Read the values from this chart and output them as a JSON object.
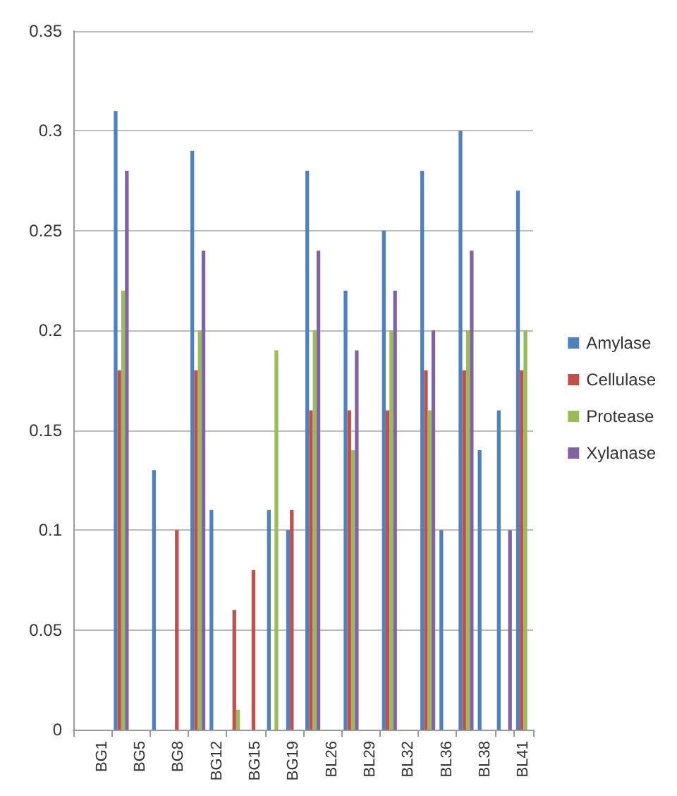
{
  "chart_data": {
    "type": "bar",
    "categories": [
      null,
      "BG1",
      null,
      "BG5",
      null,
      "BG8",
      null,
      "BG12",
      null,
      "BG15",
      null,
      "BG19",
      null,
      "BL26",
      null,
      "BL29",
      null,
      "BL32",
      null,
      "BL36",
      null,
      "BL38",
      null,
      "BL41"
    ],
    "series": [
      {
        "name": "Amylase",
        "color": "#4f81bd",
        "values": [
          null,
          null,
          0.31,
          null,
          0.13,
          null,
          0.29,
          0.11,
          null,
          null,
          0.11,
          0.1,
          0.28,
          null,
          0.22,
          null,
          0.25,
          null,
          0.28,
          0.1,
          0.3,
          0.14,
          0.16,
          0.27
        ]
      },
      {
        "name": "Cellulase",
        "color": "#c0504d",
        "values": [
          null,
          null,
          0.18,
          null,
          null,
          0.1,
          0.18,
          null,
          0.06,
          0.08,
          null,
          0.11,
          0.16,
          null,
          0.16,
          null,
          0.16,
          null,
          0.18,
          null,
          0.18,
          null,
          null,
          0.18
        ]
      },
      {
        "name": "Protease",
        "color": "#9bbb59",
        "values": [
          null,
          null,
          0.22,
          null,
          null,
          null,
          0.2,
          null,
          0.01,
          null,
          0.19,
          null,
          0.2,
          null,
          0.14,
          null,
          0.2,
          null,
          0.16,
          null,
          0.2,
          null,
          null,
          0.2
        ]
      },
      {
        "name": "Xylanase",
        "color": "#8064a2",
        "values": [
          null,
          null,
          0.28,
          null,
          null,
          null,
          0.24,
          null,
          null,
          null,
          null,
          null,
          0.24,
          null,
          0.19,
          null,
          0.22,
          null,
          0.2,
          null,
          0.24,
          null,
          0.1,
          null
        ]
      }
    ],
    "ylim": [
      0,
      0.35
    ],
    "yticks": [
      0,
      0.05,
      0.1,
      0.15,
      0.2,
      0.25,
      0.3,
      0.35
    ],
    "grid": "y",
    "legend": "right"
  }
}
